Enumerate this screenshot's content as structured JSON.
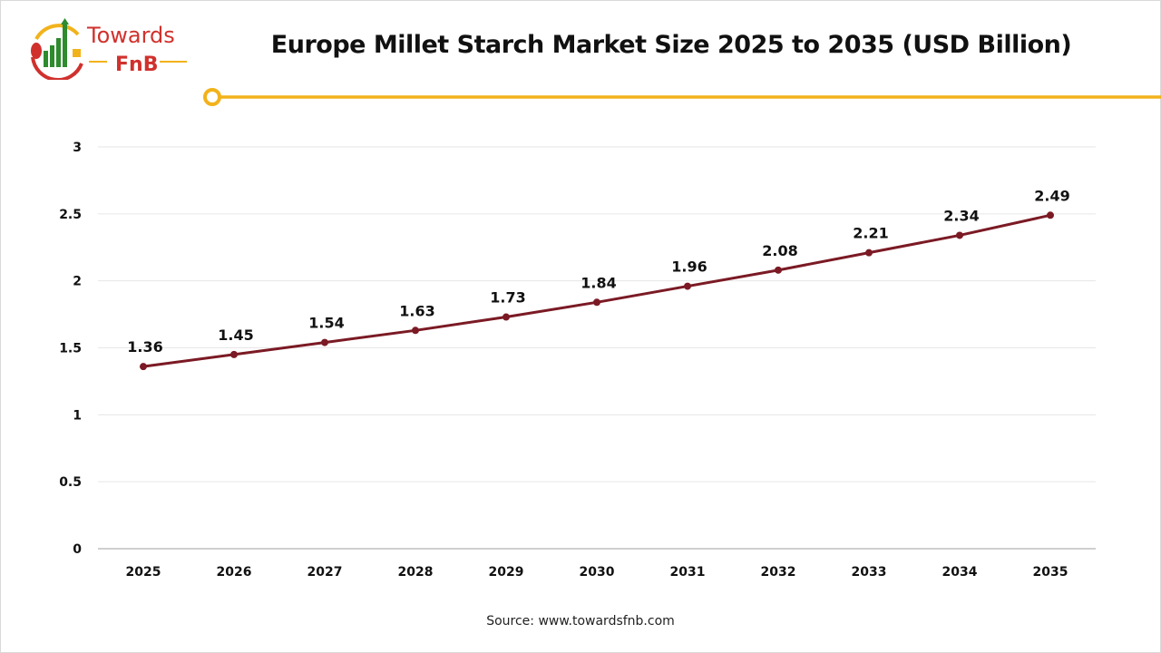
{
  "logo": {
    "line1": "Towards",
    "line2": "FnB"
  },
  "source": "Source: www.towardsfnb.com",
  "colors": {
    "line": "#7b1a24",
    "accent": "#f2b21b",
    "logo_red": "#d0312d",
    "logo_green": "#2e8b2e",
    "grid": "#e6e6e6"
  },
  "chart_data": {
    "type": "line",
    "title": "Europe Millet Starch Market Size 2025 to 2035 (USD Billion)",
    "xlabel": "",
    "ylabel": "",
    "categories": [
      "2025",
      "2026",
      "2027",
      "2028",
      "2029",
      "2030",
      "2031",
      "2032",
      "2033",
      "2034",
      "2035"
    ],
    "values": [
      1.36,
      1.45,
      1.54,
      1.63,
      1.73,
      1.84,
      1.96,
      2.08,
      2.21,
      2.34,
      2.49
    ],
    "value_labels": [
      "1.36",
      "1.45",
      "1.54",
      "1.63",
      "1.73",
      "1.84",
      "1.96",
      "2.08",
      "2.21",
      "2.34",
      "2.49"
    ],
    "ylim": [
      0,
      3
    ],
    "yticks": [
      "0",
      "0.5",
      "1",
      "1.5",
      "2",
      "2.5",
      "3"
    ],
    "grid": true,
    "legend": "none",
    "markers": true
  }
}
